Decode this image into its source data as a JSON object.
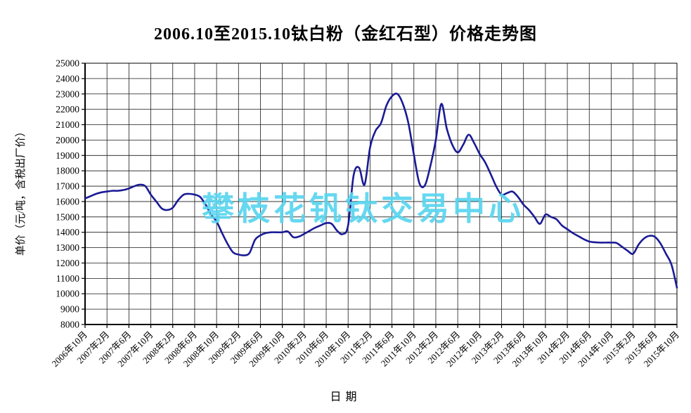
{
  "title": "2006.10至2015.10钛白粉（金红石型）价格走势图",
  "watermark": {
    "text": "攀枝花钒钛交易中心",
    "color": "#5ad5ef"
  },
  "colors": {
    "line": "#1a1a96",
    "grid": "#1a1a1a",
    "axis": "#000000",
    "background": "#ffffff"
  },
  "chart_data": {
    "type": "line",
    "title": "2006.10至2015.10钛白粉（金红石型）价格走势图",
    "xlabel": "日期",
    "ylabel": "单价（元/吨，含税出厂价）",
    "ylim": [
      8000,
      25000
    ],
    "y_tick_step": 1000,
    "y_tick_labels": [
      "25000",
      "24000",
      "23000",
      "22000",
      "21000",
      "20000",
      "19000",
      "18000",
      "17000",
      "16000",
      "15000",
      "14000",
      "13000",
      "12000",
      "11000",
      "10000",
      "9000",
      "8000"
    ],
    "x_tick_interval_months": 4,
    "x_tick_labels": [
      "2006年10月",
      "2007年2月",
      "2007年6月",
      "2007年10月",
      "2008年2月",
      "2008年6月",
      "2008年10月",
      "2009年2月",
      "2009年6月",
      "2009年10月",
      "2010年2月",
      "2010年6月",
      "2010年10月",
      "2011年2月",
      "2011年6月",
      "2011年10月",
      "2012年2月",
      "2012年6月",
      "2012年10月",
      "2013年2月",
      "2013年6月",
      "2013年10月",
      "2014年2月",
      "2014年6月",
      "2014年10月",
      "2015年2月",
      "2015年6月",
      "2015年10月"
    ],
    "grid": true,
    "legend": "none",
    "series": [
      {
        "name": "钛白粉（金红石型）价格",
        "start": "2006年10月",
        "end": "2015年10月",
        "interval": "monthly",
        "values": [
          16200,
          16350,
          16500,
          16600,
          16650,
          16700,
          16700,
          16750,
          16850,
          17000,
          17100,
          17000,
          16450,
          16000,
          15550,
          15450,
          15600,
          16100,
          16450,
          16500,
          16450,
          16300,
          15800,
          15150,
          14700,
          13950,
          13250,
          12700,
          12550,
          12500,
          12650,
          13500,
          13800,
          13950,
          14000,
          14000,
          14000,
          14050,
          13680,
          13720,
          13900,
          14100,
          14300,
          14450,
          14600,
          14550,
          14100,
          13880,
          14450,
          17700,
          18200,
          17100,
          19500,
          20600,
          21100,
          22250,
          22850,
          23000,
          22350,
          21100,
          19050,
          17200,
          17050,
          18300,
          20000,
          22350,
          20750,
          19700,
          19200,
          19700,
          20350,
          19800,
          19100,
          18550,
          17800,
          17000,
          16450,
          16550,
          16650,
          16300,
          15800,
          15450,
          15000,
          14550,
          15150,
          15000,
          14850,
          14450,
          14200,
          13950,
          13750,
          13550,
          13400,
          13350,
          13330,
          13330,
          13330,
          13300,
          13050,
          12800,
          12600,
          13200,
          13600,
          13770,
          13700,
          13270,
          12600,
          11900,
          10400
        ]
      }
    ]
  }
}
